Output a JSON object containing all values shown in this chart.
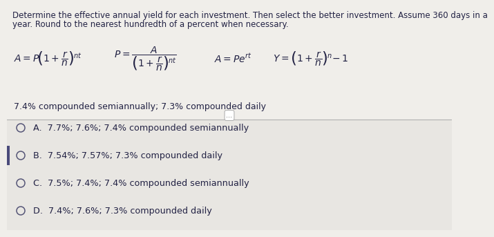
{
  "top_bg_color": "#f0eeea",
  "bottom_bg_color": "#e8e6e2",
  "divider_color": "#b0b0b0",
  "title_text1": "Determine the effective annual yield for each investment. Then select the better investment. Assume 360 days in a",
  "title_text2": "year. Round to the nearest hundredth of a percent when necessary.",
  "problem_text": "7.4% compounded semiannually; 7.3% compounded daily",
  "options": [
    {
      "label": "A.",
      "text": "7.7%; 7.6%; 7.4% compounded semiannually"
    },
    {
      "label": "B.",
      "text": "7.54%; 7.57%; 7.3% compounded daily"
    },
    {
      "label": "C.",
      "text": "7.5%; 7.4%; 7.4% compounded semiannually"
    },
    {
      "label": "D.",
      "text": "7.4%; 7.6%; 7.3% compounded daily"
    }
  ],
  "selected_option": "B",
  "sidebar_color": "#4a4a7a",
  "circle_color": "#555577",
  "text_color": "#222244",
  "font_size_title": 8.5,
  "font_size_problem": 9.0,
  "font_size_options": 9.2,
  "font_size_formula": 8.5
}
